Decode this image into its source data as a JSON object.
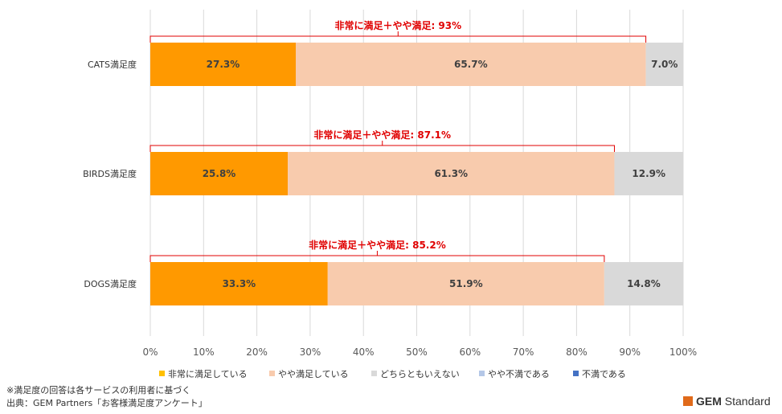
{
  "chart_data": {
    "type": "bar",
    "orientation": "horizontal",
    "stacked": true,
    "percent_stacked": true,
    "categories": [
      "CATS満足度",
      "BIRDS満足度",
      "DOGS満足度"
    ],
    "series": [
      {
        "name": "非常に満足している",
        "values": [
          27.3,
          25.8,
          33.3
        ],
        "color": "#ff9900"
      },
      {
        "name": "やや満足している",
        "values": [
          65.7,
          61.3,
          51.9
        ],
        "color": "#f8cbad"
      },
      {
        "name": "どちらともいえない",
        "values": [
          7.0,
          12.9,
          14.8
        ],
        "color": "#d9d9d9"
      },
      {
        "name": "やや不満である",
        "values": [
          0,
          0,
          0
        ],
        "color": "#b4c7e7"
      },
      {
        "name": "不満である",
        "values": [
          0,
          0,
          0
        ],
        "color": "#4472c4"
      }
    ],
    "data_labels": [
      [
        "27.3%",
        "65.7%",
        "7.0%"
      ],
      [
        "25.8%",
        "61.3%",
        "12.9%"
      ],
      [
        "33.3%",
        "51.9%",
        "14.8%"
      ]
    ],
    "annotations": [
      {
        "text": "非常に満足＋やや満足: 93%",
        "value": 93
      },
      {
        "text": "非常に満足＋やや満足: 87.1%",
        "value": 87.1
      },
      {
        "text": "非常に満足＋やや満足: 85.2%",
        "value": 85.2
      }
    ],
    "annotation_color": "#e00000",
    "xlim": [
      0,
      100
    ],
    "xticks": [
      0,
      10,
      20,
      30,
      40,
      50,
      60,
      70,
      80,
      90,
      100
    ],
    "xtick_labels": [
      "0%",
      "10%",
      "20%",
      "30%",
      "40%",
      "50%",
      "60%",
      "70%",
      "80%",
      "90%",
      "100%"
    ],
    "grid": true,
    "legend_position": "bottom"
  },
  "footnotes": {
    "note": "※満足度の回答は各サービスの利用者に基づく",
    "source": "出典：GEM Partners「お客様満足度アンケート」"
  },
  "logo": {
    "brand": "GEM",
    "suffix": "Standard",
    "color": "#e06a1a"
  }
}
